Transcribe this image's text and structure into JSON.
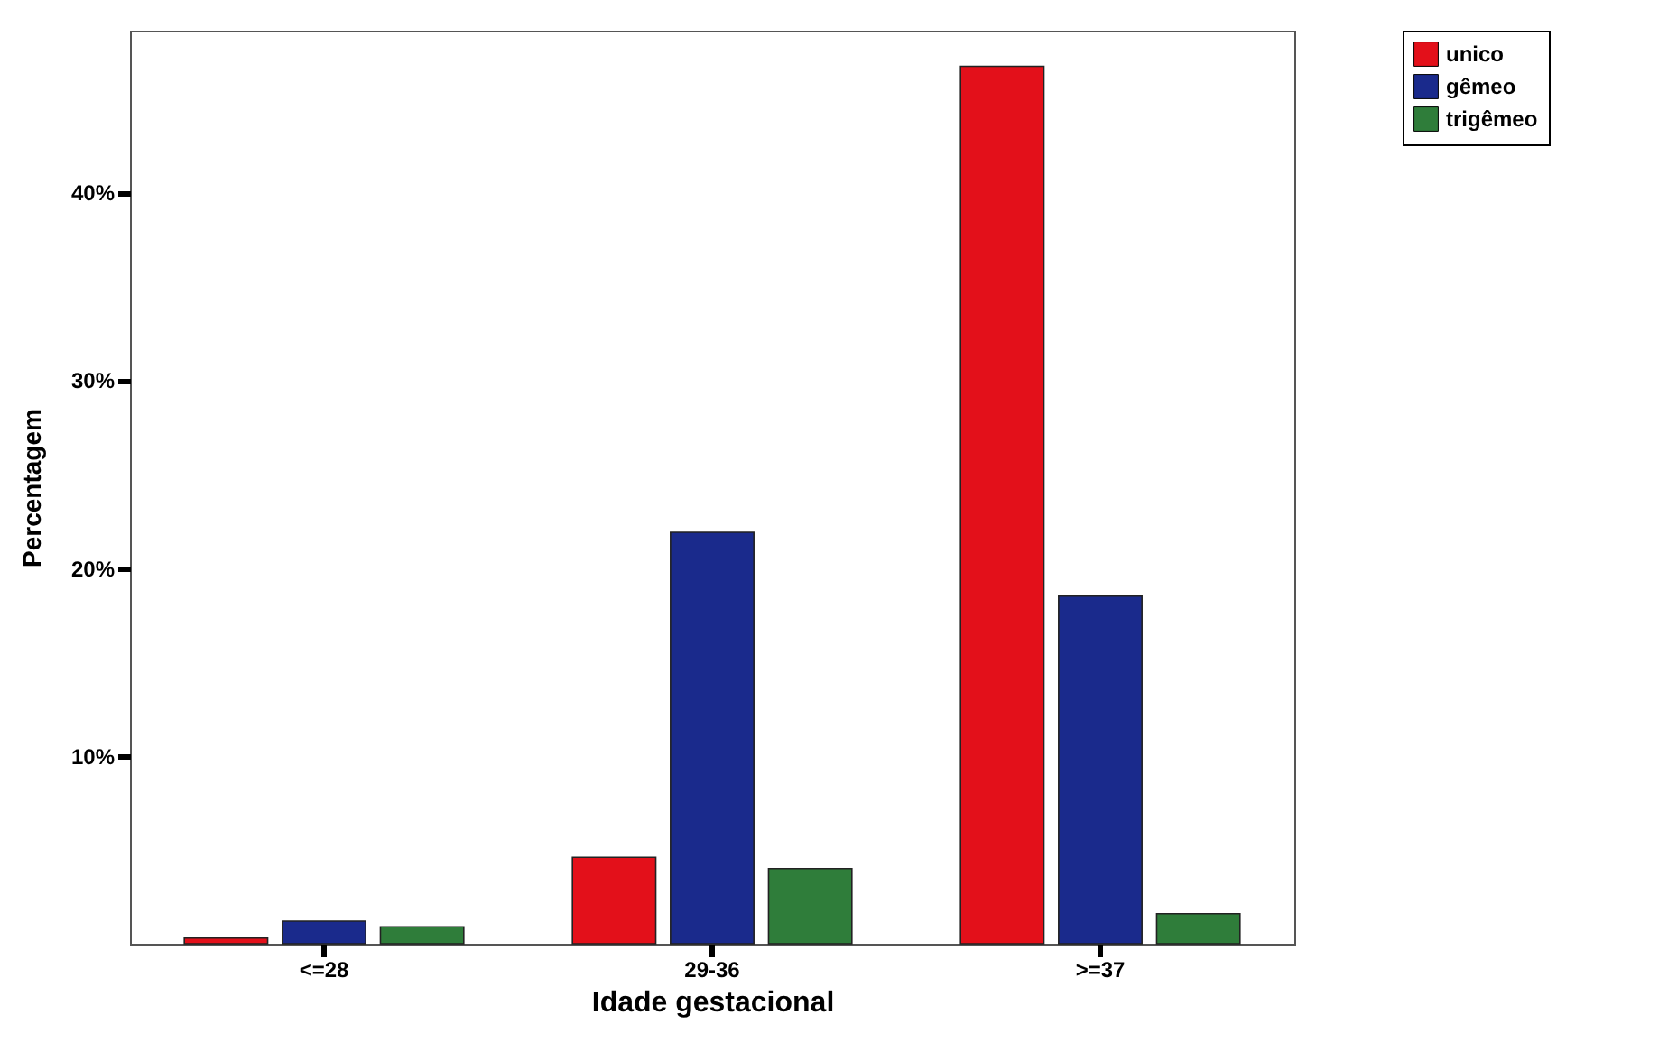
{
  "chart_data": {
    "type": "bar",
    "xlabel": "Idade gestacional",
    "ylabel": "Percentagem",
    "categories": [
      "<=28",
      "29-36",
      ">=37"
    ],
    "series": [
      {
        "name": "unico",
        "color": "#e3101a",
        "values": [
          0.3,
          4.6,
          46.7
        ]
      },
      {
        "name": "gêmeo",
        "color": "#1a2a8c",
        "values": [
          1.2,
          21.9,
          18.5
        ]
      },
      {
        "name": "trigêmeo",
        "color": "#2f7d3a",
        "values": [
          0.9,
          4.0,
          1.6
        ]
      }
    ],
    "ylim": [
      0,
      48.6
    ],
    "yticks": [
      {
        "value": 10,
        "label": "10%"
      },
      {
        "value": 20,
        "label": "20%"
      },
      {
        "value": 30,
        "label": "30%"
      },
      {
        "value": 40,
        "label": "40%"
      }
    ],
    "grid": false,
    "legend": "top right"
  }
}
